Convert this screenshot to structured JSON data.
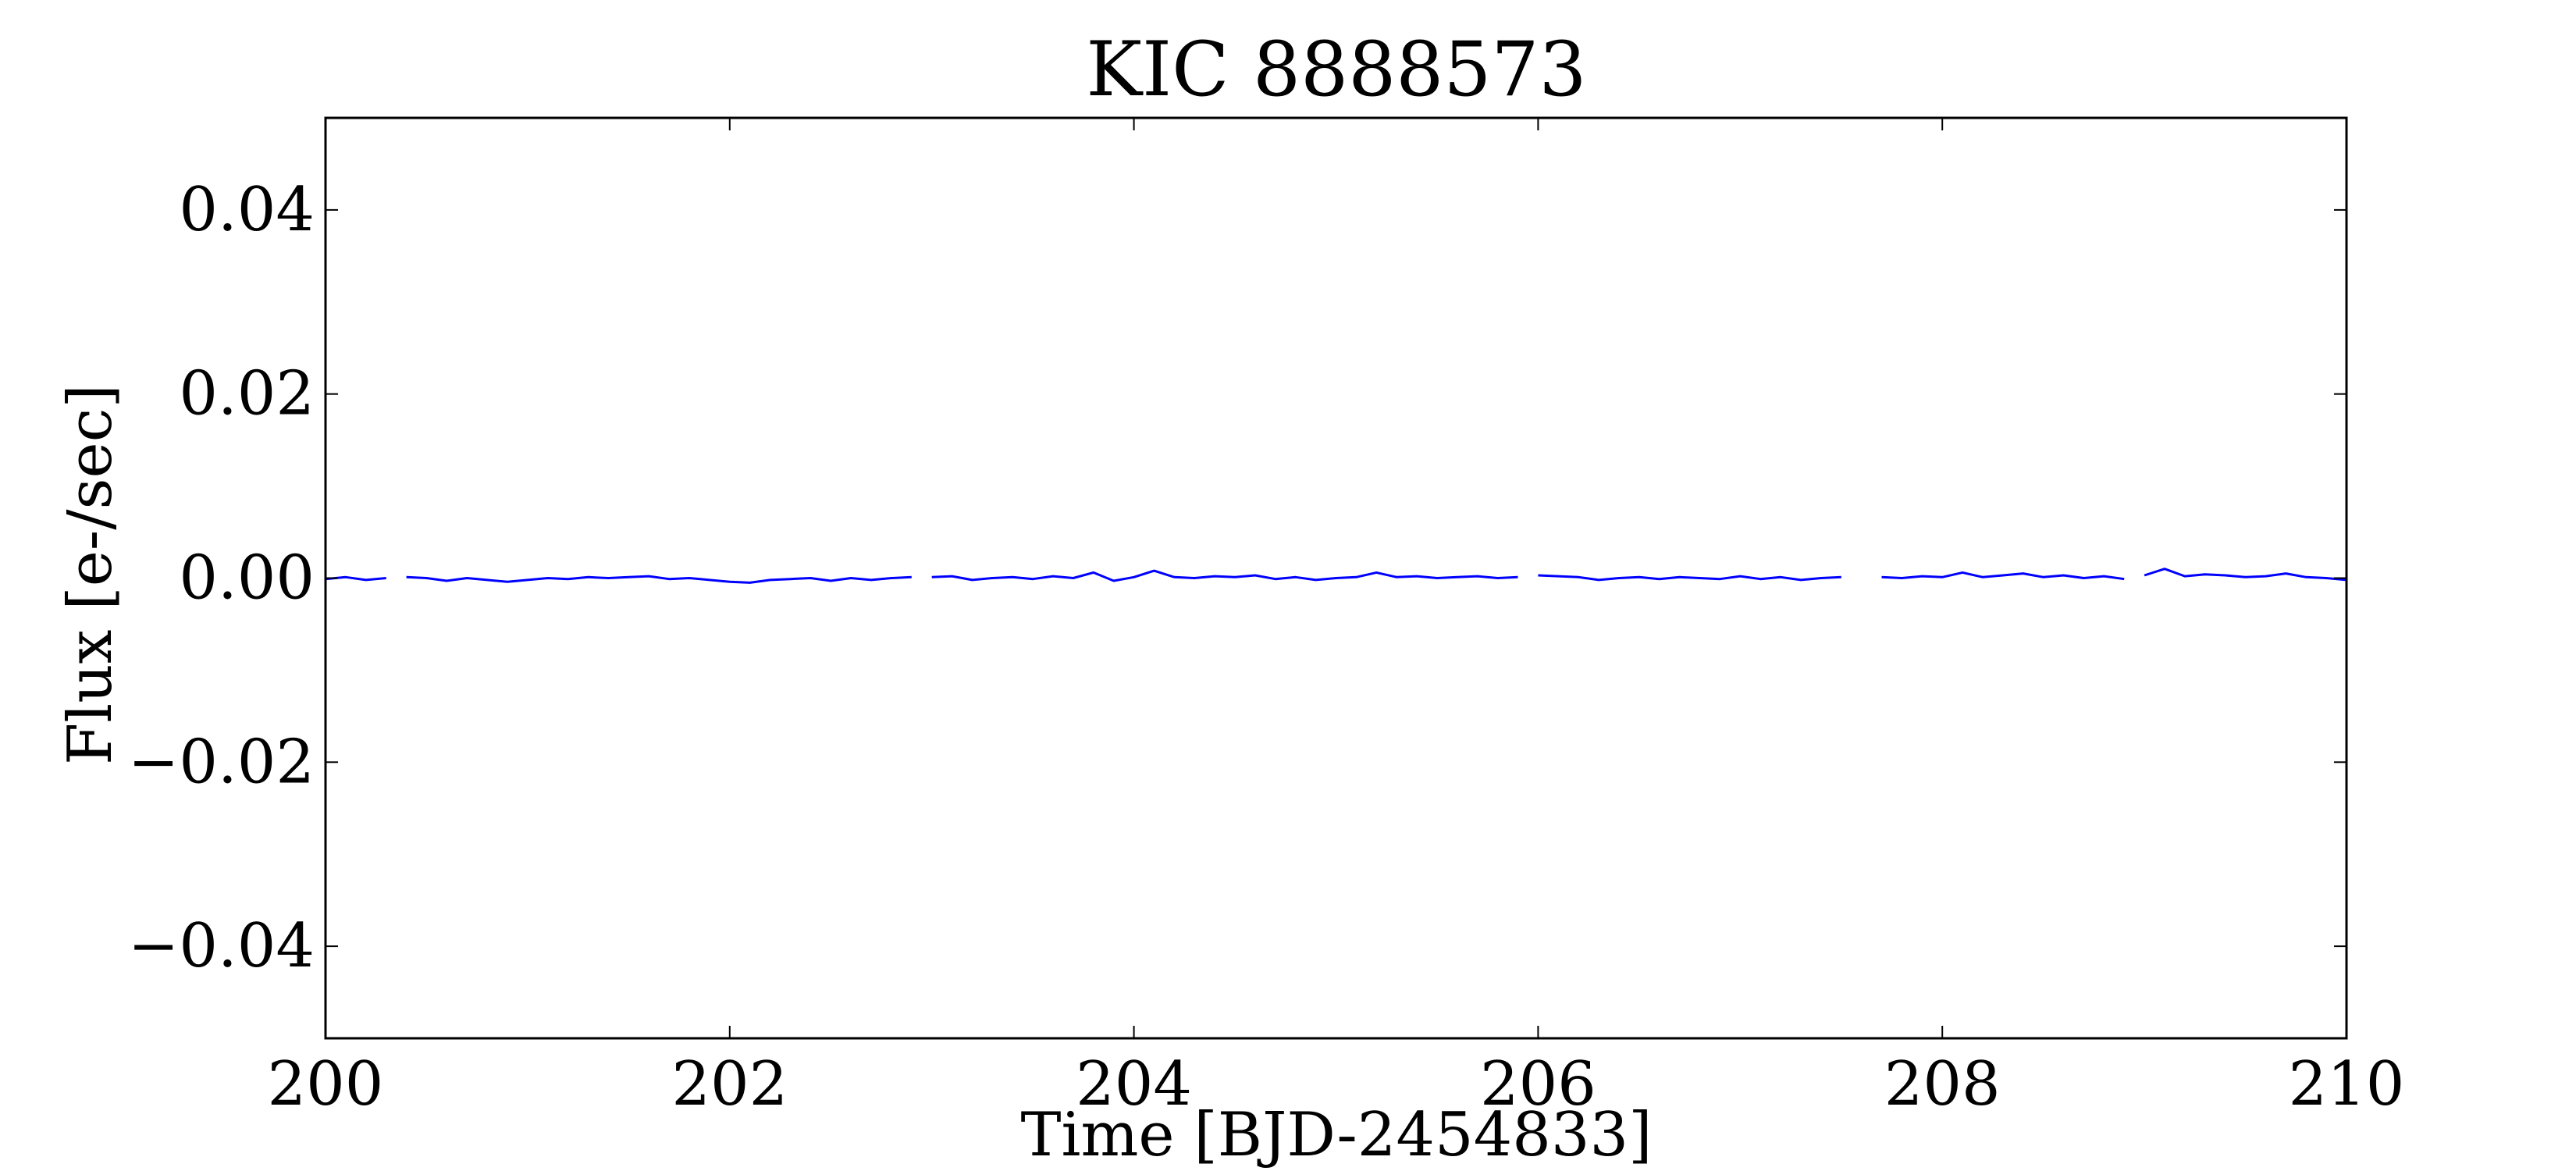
{
  "chart_data": {
    "type": "line",
    "title": "KIC 8888573",
    "xlabel": "Time [BJD-2454833]",
    "ylabel": "Flux [e-/sec]",
    "xlim": [
      200,
      210
    ],
    "ylim": [
      -0.05,
      0.05
    ],
    "xticks": [
      200,
      202,
      204,
      206,
      208,
      210
    ],
    "yticks": [
      0.04,
      0.02,
      0.0,
      -0.02,
      -0.04
    ],
    "xtick_labels": [
      "200",
      "202",
      "204",
      "206",
      "208",
      "210"
    ],
    "ytick_labels": [
      "0.04",
      "0.02",
      "0.00",
      "−0.02",
      "−0.04"
    ],
    "grid": false,
    "legend": "none",
    "series": [
      {
        "color": "#0000ff",
        "segments": [
          {
            "x": [
              200.0,
              200.1,
              200.2,
              200.3
            ],
            "y": [
              -0.0001,
              0.0001,
              -0.0002,
              0.0
            ]
          },
          {
            "x": [
              200.4,
              200.5,
              200.6,
              200.7,
              200.8,
              200.9,
              201.0,
              201.1,
              201.2,
              201.3,
              201.4,
              201.5,
              201.6,
              201.7,
              201.8,
              201.9,
              202.0,
              202.1,
              202.2,
              202.3,
              202.4,
              202.5,
              202.6,
              202.7,
              202.8,
              202.9
            ],
            "y": [
              0.0001,
              0.0,
              -0.0003,
              0.0,
              -0.0002,
              -0.0004,
              -0.0002,
              0.0,
              -0.0001,
              0.0001,
              0.0,
              0.0001,
              0.0002,
              -0.0001,
              0.0,
              -0.0002,
              -0.0004,
              -0.0005,
              -0.0002,
              -0.0001,
              0.0,
              -0.0003,
              0.0,
              -0.0002,
              0.0,
              0.0001
            ]
          },
          {
            "x": [
              203.0,
              203.1,
              203.2,
              203.3,
              203.4,
              203.5,
              203.6,
              203.7,
              203.8,
              203.9,
              204.0,
              204.1,
              204.2,
              204.3,
              204.4,
              204.5,
              204.6,
              204.7,
              204.8,
              204.9,
              205.0,
              205.1,
              205.2,
              205.3,
              205.4,
              205.5,
              205.6,
              205.7,
              205.8,
              205.9
            ],
            "y": [
              0.0001,
              0.0002,
              -0.0002,
              0.0,
              0.0001,
              -0.0001,
              0.0002,
              0.0,
              0.0006,
              -0.0003,
              0.0001,
              0.0008,
              0.0001,
              0.0,
              0.0002,
              0.0001,
              0.0003,
              -0.0001,
              0.0001,
              -0.0002,
              0.0,
              0.0001,
              0.0006,
              0.0001,
              0.0002,
              0.0,
              0.0001,
              0.0002,
              0.0,
              0.0001
            ]
          },
          {
            "x": [
              206.0,
              206.1,
              206.2,
              206.3,
              206.4,
              206.5,
              206.6,
              206.7,
              206.8,
              206.9,
              207.0,
              207.1,
              207.2,
              207.3,
              207.4,
              207.5
            ],
            "y": [
              0.0003,
              0.0002,
              0.0001,
              -0.0002,
              0.0,
              0.0001,
              -0.0001,
              0.0001,
              0.0,
              -0.0001,
              0.0002,
              -0.0001,
              0.0001,
              -0.0002,
              0.0,
              0.0001
            ]
          },
          {
            "x": [
              207.7,
              207.8,
              207.9,
              208.0,
              208.1,
              208.2,
              208.3,
              208.4,
              208.5,
              208.6,
              208.7,
              208.8,
              208.9
            ],
            "y": [
              0.0001,
              0.0,
              0.0002,
              0.0001,
              0.0006,
              0.0001,
              0.0003,
              0.0005,
              0.0001,
              0.0003,
              0.0,
              0.0002,
              -0.0001
            ]
          },
          {
            "x": [
              209.0,
              209.1,
              209.2,
              209.3,
              209.4,
              209.5,
              209.6,
              209.7,
              209.8,
              209.9,
              210.0
            ],
            "y": [
              0.0003,
              0.001,
              0.0002,
              0.0004,
              0.0003,
              0.0001,
              0.0002,
              0.0005,
              0.0001,
              0.0,
              -0.0002
            ]
          }
        ]
      }
    ]
  }
}
